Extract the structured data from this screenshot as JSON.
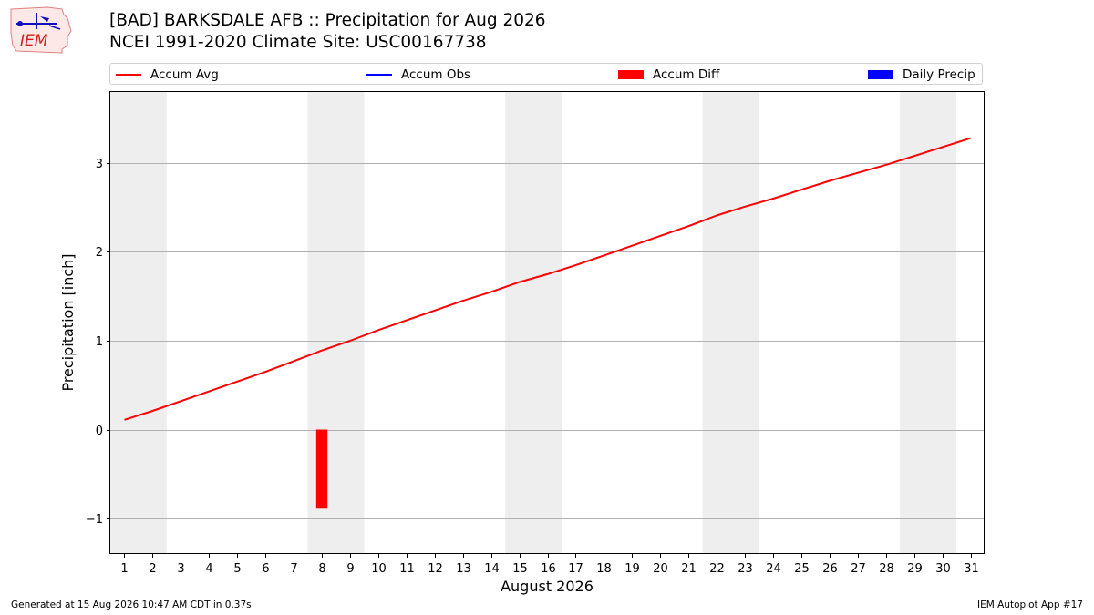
{
  "logo": {
    "text": "IEM"
  },
  "header": {
    "title": "[BAD] BARKSDALE AFB :: Precipitation for Aug 2026",
    "subtitle": "NCEI 1991-2020 Climate Site: USC00167738"
  },
  "legend": [
    {
      "label": "Accum Avg",
      "kind": "line",
      "color": "#ff0000"
    },
    {
      "label": "Accum Obs",
      "kind": "line",
      "color": "#0000ff"
    },
    {
      "label": "Accum Diff",
      "kind": "patch",
      "color": "#ff0000"
    },
    {
      "label": "Daily Precip",
      "kind": "patch",
      "color": "#0000ff"
    }
  ],
  "footer": {
    "generated": "Generated at 15 Aug 2026 10:47 AM CDT in 0.37s",
    "app": "IEM Autoplot App #17"
  },
  "chart_data": {
    "type": "line",
    "title": "[BAD] BARKSDALE AFB :: Precipitation for Aug 2026",
    "subtitle": "NCEI 1991-2020 Climate Site: USC00167738",
    "xlabel": "August 2026",
    "ylabel": "Precipitation [inch]",
    "xlim": [
      0.5,
      31.5
    ],
    "ylim": [
      -1.4,
      3.8
    ],
    "yticks": [
      -1,
      0,
      1,
      2,
      3
    ],
    "ytick_labels": [
      "−1",
      "0",
      "1",
      "2",
      "3"
    ],
    "xticks": [
      1,
      2,
      3,
      4,
      5,
      6,
      7,
      8,
      9,
      10,
      11,
      12,
      13,
      14,
      15,
      16,
      17,
      18,
      19,
      20,
      21,
      22,
      23,
      24,
      25,
      26,
      27,
      28,
      29,
      30,
      31
    ],
    "grid": "y",
    "weekend_shading": [
      [
        0.5,
        2.5
      ],
      [
        7.5,
        9.5
      ],
      [
        14.5,
        16.5
      ],
      [
        21.5,
        23.5
      ],
      [
        28.5,
        30.5
      ]
    ],
    "weekend_color": "#eeeeee",
    "series": [
      {
        "name": "Accum Avg",
        "kind": "line",
        "color": "#ff0000",
        "x": [
          1,
          2,
          3,
          4,
          5,
          6,
          7,
          8,
          9,
          10,
          11,
          12,
          13,
          14,
          15,
          16,
          17,
          18,
          19,
          20,
          21,
          22,
          23,
          24,
          25,
          26,
          27,
          28,
          29,
          30,
          31
        ],
        "values": [
          0.11,
          0.21,
          0.32,
          0.43,
          0.54,
          0.65,
          0.77,
          0.89,
          1.0,
          1.12,
          1.23,
          1.34,
          1.45,
          1.55,
          1.66,
          1.75,
          1.85,
          1.96,
          2.07,
          2.18,
          2.29,
          2.41,
          2.51,
          2.6,
          2.7,
          2.8,
          2.89,
          2.98,
          3.08,
          3.18,
          3.28
        ]
      },
      {
        "name": "Accum Diff",
        "kind": "bar",
        "color": "#ff0000",
        "x": [
          8
        ],
        "values": [
          -0.89
        ]
      }
    ]
  }
}
